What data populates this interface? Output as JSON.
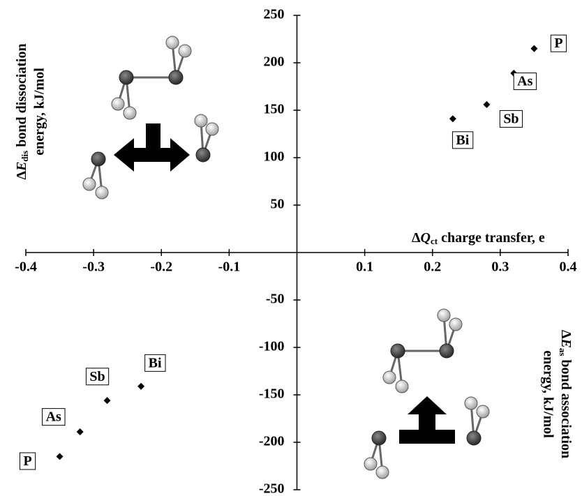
{
  "chart_data": {
    "type": "scatter",
    "x_title": {
      "symbol": "Δ",
      "var": "Q",
      "sub": "ct",
      "text": " charge transfer, e"
    },
    "y_title": {
      "symbol": "Δ",
      "var": "E",
      "sub": "dis",
      "line1": " bond dissociation",
      "line2": "energy, kJ/mol"
    },
    "y2_title": {
      "symbol": "Δ",
      "var": "E",
      "sub": "as",
      "line1": " bond association",
      "line2": "energy, kJ/mol"
    },
    "series": [
      {
        "color": "#000000",
        "labels": [
          "P",
          "As",
          "Sb",
          "Bi"
        ],
        "x": [
          0.35,
          0.32,
          0.28,
          0.23
        ],
        "values": [
          215,
          189,
          156,
          141
        ]
      },
      {
        "color": "#000000",
        "labels": [
          "P",
          "As",
          "Sb",
          "Bi"
        ],
        "x": [
          -0.35,
          -0.32,
          -0.28,
          -0.23
        ],
        "values": [
          -215,
          -189,
          -156,
          -141
        ]
      }
    ],
    "xlim": [
      -0.4,
      0.4
    ],
    "xticks": [
      -0.4,
      -0.3,
      -0.2,
      -0.1,
      0.1,
      0.2,
      0.3,
      0.4
    ],
    "ylim": [
      -250,
      250
    ],
    "yticks": [
      250,
      200,
      150,
      100,
      50,
      -50,
      -100,
      -150,
      -200,
      -250
    ]
  }
}
